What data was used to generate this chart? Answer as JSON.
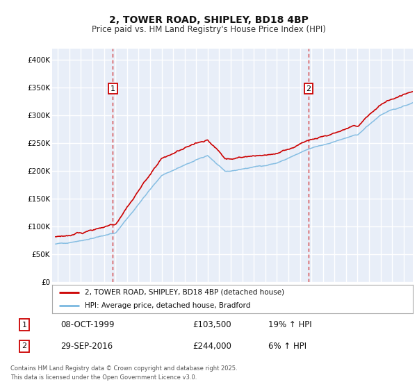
{
  "title_line1": "2, TOWER ROAD, SHIPLEY, BD18 4BP",
  "title_line2": "Price paid vs. HM Land Registry's House Price Index (HPI)",
  "background_color": "#e8eef8",
  "grid_color": "#ffffff",
  "red_line_color": "#cc0000",
  "blue_line_color": "#7ab8e0",
  "transaction1": {
    "label": "1",
    "date": "08-OCT-1999",
    "price": 103500,
    "hpi_change": "19% ↑ HPI",
    "x_year": 1999.77
  },
  "transaction2": {
    "label": "2",
    "date": "29-SEP-2016",
    "price": 244000,
    "hpi_change": "6% ↑ HPI",
    "x_year": 2016.75
  },
  "legend_line1": "2, TOWER ROAD, SHIPLEY, BD18 4BP (detached house)",
  "legend_line2": "HPI: Average price, detached house, Bradford",
  "footer": "Contains HM Land Registry data © Crown copyright and database right 2025.\nThis data is licensed under the Open Government Licence v3.0.",
  "ylim": [
    0,
    420000
  ],
  "xlim_start": 1994.5,
  "xlim_end": 2025.8,
  "yticks": [
    0,
    50000,
    100000,
    150000,
    200000,
    250000,
    300000,
    350000,
    400000
  ],
  "ylabels": [
    "£0",
    "£50K",
    "£100K",
    "£150K",
    "£200K",
    "£250K",
    "£300K",
    "£350K",
    "£400K"
  ]
}
